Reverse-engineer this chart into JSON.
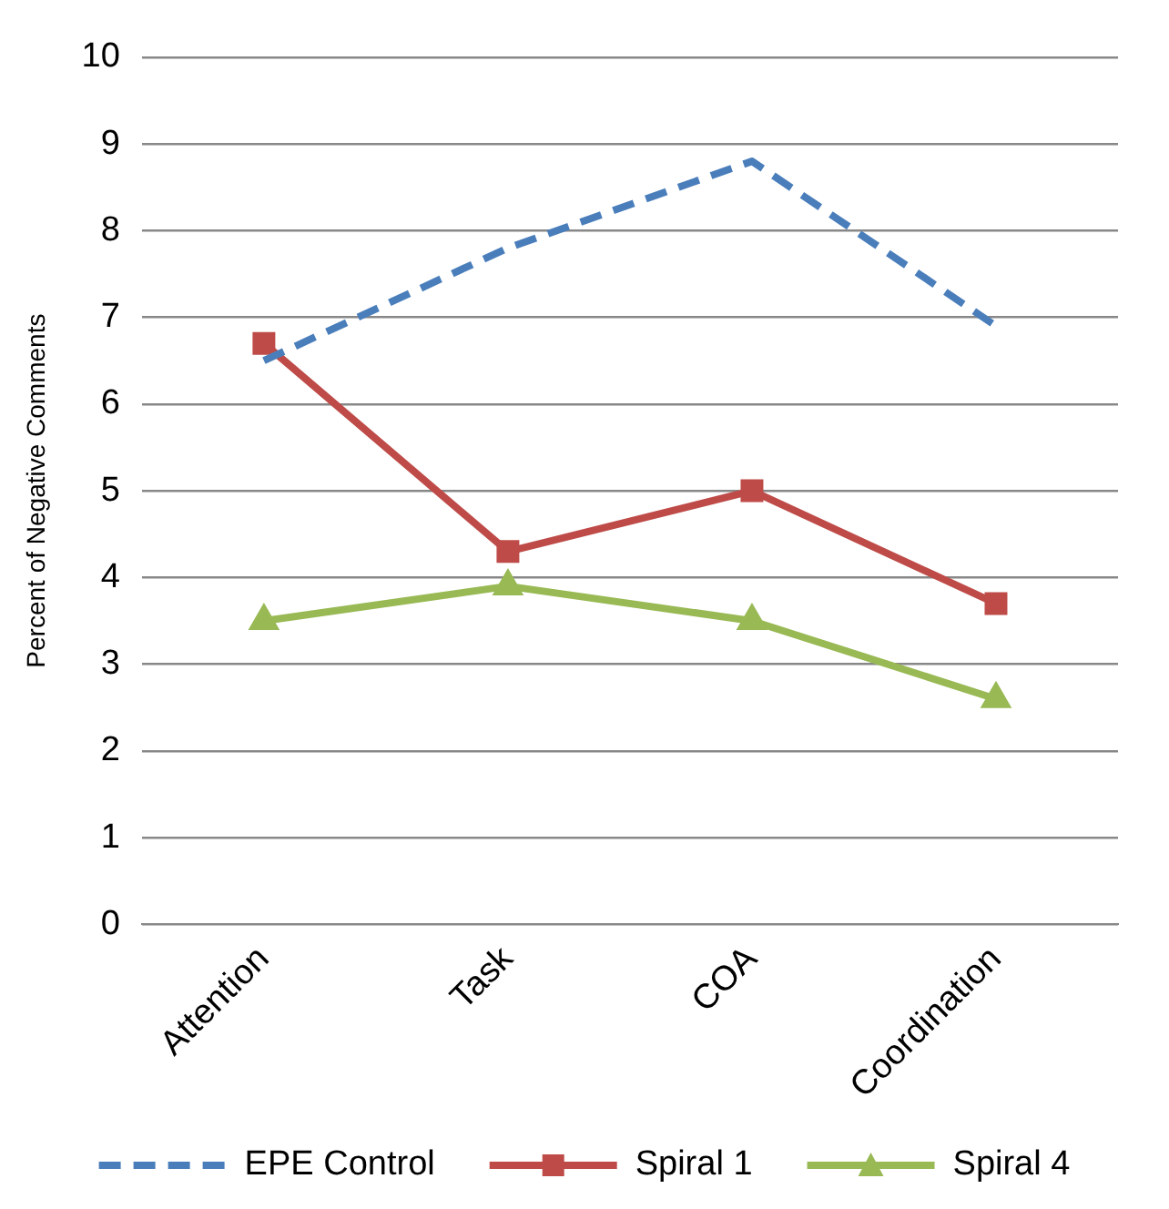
{
  "chart_data": {
    "type": "line",
    "ylabel": "Percent of Negative Comments",
    "categories": [
      "Attention",
      "Task",
      "COA",
      "Coordination"
    ],
    "series": [
      {
        "name": "EPE Control",
        "color": "#4a7ebb",
        "values": [
          6.5,
          7.8,
          8.8,
          6.9
        ],
        "marker": "none",
        "line_style": "dashed"
      },
      {
        "name": "Spiral 1",
        "color": "#be4b48",
        "values": [
          6.7,
          4.3,
          5.0,
          3.7
        ],
        "marker": "square",
        "line_style": "solid"
      },
      {
        "name": "Spiral 4",
        "color": "#98b954",
        "values": [
          3.5,
          3.9,
          3.5,
          2.6
        ],
        "marker": "triangle",
        "line_style": "solid"
      }
    ],
    "ylim": [
      0,
      10
    ],
    "yticks": [
      0,
      1,
      2,
      3,
      4,
      5,
      6,
      7,
      8,
      9,
      10
    ],
    "grid": "y",
    "legend": "bottom"
  }
}
